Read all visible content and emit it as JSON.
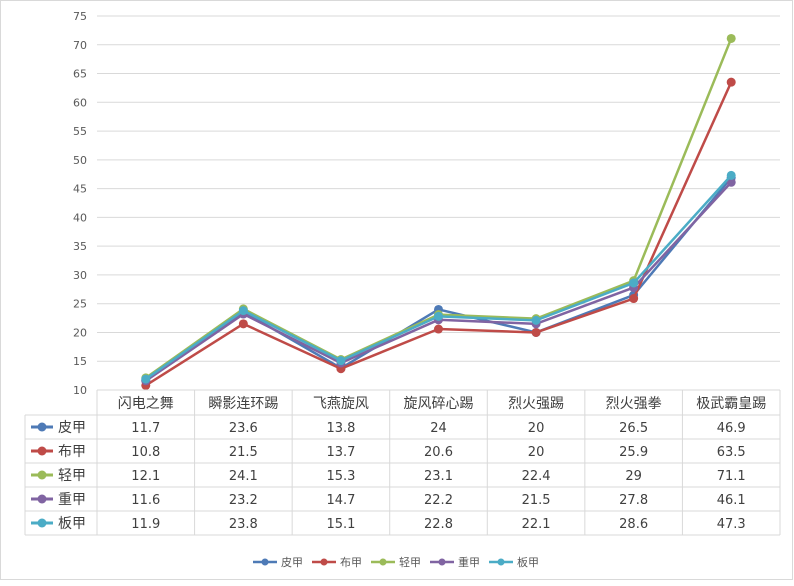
{
  "chart_data": {
    "type": "line",
    "title": "",
    "xlabel": "",
    "ylabel": "",
    "ylim": [
      10,
      75
    ],
    "y_ticks": [
      10,
      15,
      20,
      25,
      30,
      35,
      40,
      45,
      50,
      55,
      60,
      65,
      70,
      75
    ],
    "grid": true,
    "legend_position": "bottom",
    "categories": [
      "闪电之舞",
      "瞬影连环踢",
      "飞燕旋风",
      "旋风碎心踢",
      "烈火强踢",
      "烈火强拳",
      "极武霸皇踢"
    ],
    "series": [
      {
        "name": "皮甲",
        "color": "#4e7ab6",
        "values": [
          11.7,
          23.6,
          13.8,
          24,
          20,
          26.5,
          46.9
        ]
      },
      {
        "name": "布甲",
        "color": "#bf4b48",
        "values": [
          10.8,
          21.5,
          13.7,
          20.6,
          20,
          25.9,
          63.5
        ]
      },
      {
        "name": "轻甲",
        "color": "#9bbb59",
        "values": [
          12.1,
          24.1,
          15.3,
          23.1,
          22.4,
          29,
          71.1
        ]
      },
      {
        "name": "重甲",
        "color": "#8064a2",
        "values": [
          11.6,
          23.2,
          14.7,
          22.2,
          21.5,
          27.8,
          46.1
        ]
      },
      {
        "name": "板甲",
        "color": "#4bacc6",
        "values": [
          11.9,
          23.8,
          15.1,
          22.8,
          22.1,
          28.6,
          47.3
        ]
      }
    ]
  }
}
